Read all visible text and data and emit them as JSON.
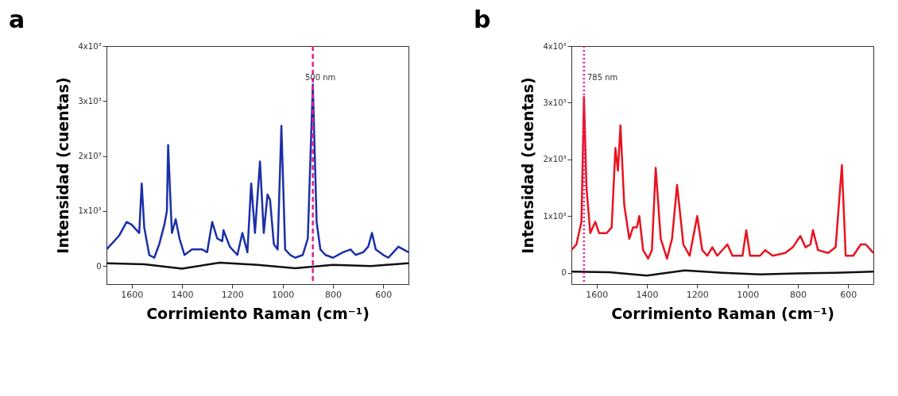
{
  "chart_data": [
    {
      "type": "line",
      "title": "a",
      "xlabel": "Corrimiento Raman (cm⁻¹)",
      "ylabel": "Intensidad (cuentas)",
      "xlim": [
        1700,
        500
      ],
      "xticks": [
        1600,
        1400,
        1200,
        1000,
        800,
        600
      ],
      "ylim": [
        -330,
        4000
      ],
      "yticks": [
        {
          "value": 0,
          "label": "0"
        },
        {
          "value": 1000,
          "label": "1x10³"
        },
        {
          "value": 2000,
          "label": "2x10³"
        },
        {
          "value": 3000,
          "label": "3x10³"
        },
        {
          "value": 4000,
          "label": "4x10³"
        }
      ],
      "series": [
        {
          "color": "#111111",
          "x": [
            1700,
            1550,
            1400,
            1250,
            1100,
            950,
            800,
            650,
            500
          ],
          "values": [
            50,
            30,
            -50,
            60,
            20,
            -40,
            20,
            0,
            50
          ]
        },
        {
          "color": "#1a2fa8",
          "x": [
            1700,
            1650,
            1620,
            1600,
            1570,
            1560,
            1550,
            1530,
            1510,
            1490,
            1470,
            1460,
            1455,
            1445,
            1440,
            1425,
            1410,
            1390,
            1360,
            1320,
            1300,
            1280,
            1260,
            1240,
            1235,
            1210,
            1180,
            1160,
            1140,
            1125,
            1110,
            1090,
            1075,
            1060,
            1050,
            1035,
            1020,
            1005,
            990,
            970,
            950,
            920,
            900,
            880,
            865,
            850,
            830,
            800,
            760,
            730,
            710,
            680,
            660,
            645,
            630,
            600,
            580,
            560,
            540,
            520,
            500
          ],
          "values": [
            300,
            550,
            800,
            750,
            600,
            1500,
            700,
            200,
            150,
            400,
            750,
            1000,
            2200,
            1100,
            600,
            850,
            500,
            200,
            300,
            300,
            250,
            800,
            500,
            450,
            650,
            350,
            200,
            600,
            250,
            1500,
            600,
            1900,
            600,
            1300,
            1200,
            400,
            300,
            2550,
            300,
            200,
            150,
            200,
            500,
            3300,
            800,
            300,
            200,
            150,
            250,
            300,
            200,
            250,
            350,
            600,
            300,
            200,
            150,
            250,
            350,
            300,
            250
          ]
        }
      ],
      "ref_lines": [
        {
          "axis": "x",
          "value": 880,
          "color": "#e0208c",
          "line_style": "dashed"
        }
      ],
      "annotations": [
        "500 nm"
      ],
      "grid": false
    },
    {
      "type": "line",
      "title": "b",
      "xlabel": "Corrimiento Raman (cm⁻¹)",
      "ylabel": "Intensidad (cuentas)",
      "xlim": [
        1700,
        500
      ],
      "xticks": [
        1600,
        1400,
        1200,
        1000,
        800,
        600
      ],
      "ylim": [
        -200,
        4000
      ],
      "yticks": [
        {
          "value": 0,
          "label": "0"
        },
        {
          "value": 1000,
          "label": "1x10³"
        },
        {
          "value": 2000,
          "label": "2x10³"
        },
        {
          "value": 3000,
          "label": "3x10³"
        },
        {
          "value": 4000,
          "label": "4x10³"
        }
      ],
      "series": [
        {
          "color": "#111111",
          "x": [
            1700,
            1550,
            1400,
            1250,
            1100,
            950,
            800,
            650,
            500
          ],
          "values": [
            20,
            10,
            -50,
            40,
            0,
            -30,
            -10,
            0,
            20
          ]
        },
        {
          "color": "#e8131f",
          "x": [
            1700,
            1680,
            1660,
            1650,
            1640,
            1625,
            1605,
            1590,
            1560,
            1540,
            1525,
            1515,
            1505,
            1490,
            1470,
            1455,
            1440,
            1430,
            1415,
            1395,
            1380,
            1365,
            1345,
            1320,
            1300,
            1280,
            1255,
            1230,
            1200,
            1180,
            1160,
            1140,
            1120,
            1080,
            1060,
            1020,
            1005,
            990,
            950,
            930,
            900,
            850,
            820,
            790,
            770,
            750,
            740,
            720,
            680,
            650,
            625,
            610,
            580,
            550,
            530,
            510,
            500
          ],
          "values": [
            400,
            500,
            900,
            3100,
            1500,
            700,
            900,
            700,
            700,
            800,
            2200,
            1800,
            2600,
            1200,
            600,
            800,
            800,
            1000,
            400,
            250,
            400,
            1850,
            600,
            250,
            600,
            1550,
            500,
            300,
            1000,
            400,
            300,
            450,
            300,
            500,
            300,
            300,
            750,
            300,
            300,
            400,
            300,
            350,
            450,
            650,
            450,
            500,
            750,
            400,
            350,
            450,
            1900,
            300,
            300,
            500,
            500,
            400,
            350
          ]
        }
      ],
      "ref_lines": [
        {
          "axis": "x",
          "value": 1650,
          "color": "#e0208c",
          "line_style": "dotted"
        }
      ],
      "annotations": [
        "785 nm"
      ],
      "grid": false
    }
  ]
}
